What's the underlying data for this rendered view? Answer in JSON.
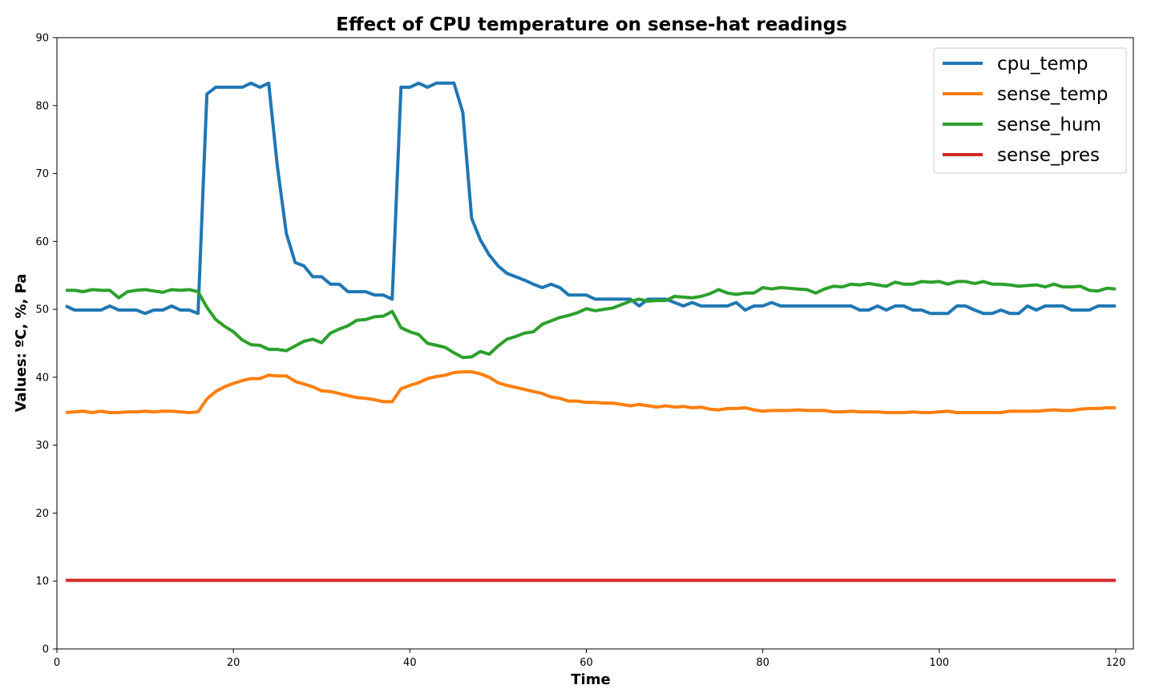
{
  "chart_data": {
    "type": "line",
    "title": "Effect of CPU temperature on sense-hat readings",
    "xlabel": "Time",
    "ylabel": "Values: ºC, %, Pa",
    "xlim": [
      0,
      122
    ],
    "ylim": [
      0,
      90
    ],
    "x_ticks": [
      0,
      20,
      40,
      60,
      80,
      100,
      120
    ],
    "y_ticks": [
      0,
      10,
      20,
      30,
      40,
      50,
      60,
      70,
      80,
      90
    ],
    "grid": false,
    "legend_position": "top-right",
    "x": [
      1,
      2,
      3,
      4,
      5,
      6,
      7,
      8,
      9,
      10,
      11,
      12,
      13,
      14,
      15,
      16,
      17,
      18,
      19,
      20,
      21,
      22,
      23,
      24,
      25,
      26,
      27,
      28,
      29,
      30,
      31,
      32,
      33,
      34,
      35,
      36,
      37,
      38,
      39,
      40,
      41,
      42,
      43,
      44,
      45,
      46,
      47,
      48,
      49,
      50,
      51,
      52,
      53,
      54,
      55,
      56,
      57,
      58,
      59,
      60,
      61,
      62,
      63,
      64,
      65,
      66,
      67,
      68,
      69,
      70,
      71,
      72,
      73,
      74,
      75,
      76,
      77,
      78,
      79,
      80,
      81,
      82,
      83,
      84,
      85,
      86,
      87,
      88,
      89,
      90,
      91,
      92,
      93,
      94,
      95,
      96,
      97,
      98,
      99,
      100,
      101,
      102,
      103,
      104,
      105,
      106,
      107,
      108,
      109,
      110,
      111,
      112,
      113,
      114,
      115,
      116,
      117,
      118,
      119,
      120
    ],
    "series": [
      {
        "name": "cpu_temp",
        "color": "#1f77b4",
        "values": [
          50.5,
          49.9,
          49.9,
          49.9,
          49.9,
          50.5,
          49.9,
          49.9,
          49.9,
          49.4,
          49.9,
          49.9,
          50.5,
          49.9,
          49.9,
          49.4,
          81.7,
          82.7,
          82.7,
          82.7,
          82.7,
          83.3,
          82.7,
          83.3,
          70.9,
          61.2,
          56.9,
          56.4,
          54.8,
          54.8,
          53.7,
          53.7,
          52.6,
          52.6,
          52.6,
          52.1,
          52.1,
          51.5,
          82.7,
          82.7,
          83.3,
          82.7,
          83.3,
          83.3,
          83.3,
          79.0,
          63.4,
          60.2,
          58.0,
          56.4,
          55.3,
          54.8,
          54.3,
          53.7,
          53.2,
          53.7,
          53.2,
          52.1,
          52.1,
          52.1,
          51.5,
          51.5,
          51.5,
          51.5,
          51.5,
          50.5,
          51.5,
          51.5,
          51.5,
          51.0,
          50.5,
          51.0,
          50.5,
          50.5,
          50.5,
          50.5,
          51.0,
          49.9,
          50.5,
          50.5,
          51.0,
          50.5,
          50.5,
          50.5,
          50.5,
          50.5,
          50.5,
          50.5,
          50.5,
          50.5,
          49.9,
          49.9,
          50.5,
          49.9,
          50.5,
          50.5,
          49.9,
          49.9,
          49.4,
          49.4,
          49.4,
          50.5,
          50.5,
          49.9,
          49.4,
          49.4,
          49.9,
          49.4,
          49.4,
          50.5,
          49.9,
          50.5,
          50.5,
          50.5,
          49.9,
          49.9,
          49.9,
          50.5,
          50.5,
          50.5
        ]
      },
      {
        "name": "sense_temp",
        "color": "#ff7f0e",
        "values": [
          34.8,
          34.9,
          35.0,
          34.8,
          35.0,
          34.8,
          34.8,
          34.9,
          34.9,
          35.0,
          34.9,
          35.0,
          35.0,
          34.9,
          34.8,
          34.9,
          36.8,
          37.9,
          38.6,
          39.1,
          39.5,
          39.8,
          39.8,
          40.3,
          40.2,
          40.2,
          39.4,
          39.0,
          38.6,
          38.0,
          37.9,
          37.6,
          37.3,
          37.0,
          36.9,
          36.7,
          36.4,
          36.4,
          38.3,
          38.8,
          39.2,
          39.8,
          40.1,
          40.3,
          40.7,
          40.8,
          40.8,
          40.5,
          40.0,
          39.2,
          38.8,
          38.5,
          38.2,
          37.9,
          37.6,
          37.1,
          36.9,
          36.5,
          36.5,
          36.3,
          36.3,
          36.2,
          36.2,
          36.0,
          35.8,
          36.0,
          35.8,
          35.6,
          35.8,
          35.6,
          35.7,
          35.5,
          35.6,
          35.3,
          35.2,
          35.4,
          35.4,
          35.5,
          35.2,
          35.0,
          35.1,
          35.1,
          35.1,
          35.2,
          35.1,
          35.1,
          35.1,
          34.9,
          34.9,
          35.0,
          34.9,
          34.9,
          34.9,
          34.8,
          34.8,
          34.8,
          34.9,
          34.8,
          34.8,
          34.9,
          35.0,
          34.8,
          34.8,
          34.8,
          34.8,
          34.8,
          34.8,
          35.0,
          35.0,
          35.0,
          35.0,
          35.1,
          35.2,
          35.1,
          35.1,
          35.3,
          35.4,
          35.4,
          35.5,
          35.5
        ]
      },
      {
        "name": "sense_hum",
        "color": "#2ca02c",
        "values": [
          52.8,
          52.8,
          52.6,
          52.9,
          52.8,
          52.8,
          51.7,
          52.6,
          52.8,
          52.9,
          52.7,
          52.5,
          52.9,
          52.8,
          52.9,
          52.6,
          50.3,
          48.5,
          47.5,
          46.7,
          45.5,
          44.8,
          44.7,
          44.1,
          44.1,
          43.9,
          44.6,
          45.3,
          45.6,
          45.1,
          46.5,
          47.1,
          47.6,
          48.4,
          48.5,
          48.9,
          49.0,
          49.7,
          47.3,
          46.7,
          46.3,
          45.0,
          44.7,
          44.4,
          43.6,
          42.9,
          43.0,
          43.8,
          43.4,
          44.6,
          45.6,
          46.0,
          46.5,
          46.7,
          47.8,
          48.3,
          48.8,
          49.1,
          49.5,
          50.1,
          49.8,
          50.0,
          50.2,
          50.7,
          51.2,
          51.5,
          51.2,
          51.3,
          51.3,
          51.9,
          51.8,
          51.7,
          51.9,
          52.3,
          52.9,
          52.4,
          52.2,
          52.4,
          52.4,
          53.2,
          53.0,
          53.2,
          53.1,
          53.0,
          52.9,
          52.4,
          53.0,
          53.4,
          53.3,
          53.7,
          53.6,
          53.8,
          53.6,
          53.4,
          54.0,
          53.7,
          53.7,
          54.1,
          54.0,
          54.1,
          53.7,
          54.1,
          54.1,
          53.8,
          54.1,
          53.7,
          53.7,
          53.6,
          53.4,
          53.5,
          53.6,
          53.3,
          53.7,
          53.3,
          53.3,
          53.4,
          52.8,
          52.7,
          53.1,
          53.0
        ]
      },
      {
        "name": "sense_pres",
        "color": "#d62728",
        "values": [
          10.1,
          10.1,
          10.1,
          10.1,
          10.1,
          10.1,
          10.1,
          10.1,
          10.1,
          10.1,
          10.1,
          10.1,
          10.1,
          10.1,
          10.1,
          10.1,
          10.1,
          10.1,
          10.1,
          10.1,
          10.1,
          10.1,
          10.1,
          10.1,
          10.1,
          10.1,
          10.1,
          10.1,
          10.1,
          10.1,
          10.1,
          10.1,
          10.1,
          10.1,
          10.1,
          10.1,
          10.1,
          10.1,
          10.1,
          10.1,
          10.1,
          10.1,
          10.1,
          10.1,
          10.1,
          10.1,
          10.1,
          10.1,
          10.1,
          10.1,
          10.1,
          10.1,
          10.1,
          10.1,
          10.1,
          10.1,
          10.1,
          10.1,
          10.1,
          10.1,
          10.1,
          10.1,
          10.1,
          10.1,
          10.1,
          10.1,
          10.1,
          10.1,
          10.1,
          10.1,
          10.1,
          10.1,
          10.1,
          10.1,
          10.1,
          10.1,
          10.1,
          10.1,
          10.1,
          10.1,
          10.1,
          10.1,
          10.1,
          10.1,
          10.1,
          10.1,
          10.1,
          10.1,
          10.1,
          10.1,
          10.1,
          10.1,
          10.1,
          10.1,
          10.1,
          10.1,
          10.1,
          10.1,
          10.1,
          10.1,
          10.1,
          10.1,
          10.1,
          10.1,
          10.1,
          10.1,
          10.1,
          10.1,
          10.1,
          10.1,
          10.1,
          10.1,
          10.1,
          10.1,
          10.1,
          10.1,
          10.1,
          10.1,
          10.1,
          10.1
        ]
      }
    ]
  }
}
